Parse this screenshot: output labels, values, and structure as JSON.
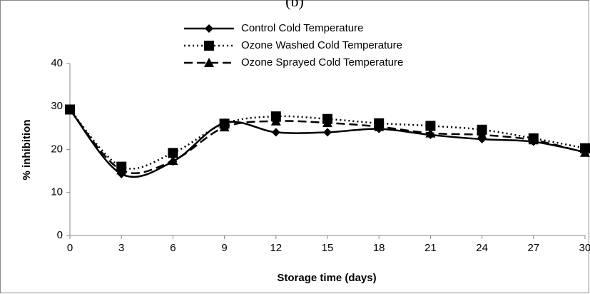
{
  "chart_data": {
    "type": "line",
    "title": "(b)",
    "x_label": "Storage time (days)",
    "y_label": "% inhibition",
    "x": [
      0,
      3,
      6,
      9,
      12,
      15,
      18,
      21,
      24,
      27,
      30
    ],
    "xlim": [
      0,
      30
    ],
    "xticks": [
      0,
      3,
      6,
      9,
      12,
      15,
      18,
      21,
      24,
      27,
      30
    ],
    "ylim": [
      0,
      40
    ],
    "yticks": [
      0,
      10,
      20,
      30,
      40
    ],
    "grid": false,
    "legend": "top",
    "series": [
      {
        "name": "Control Cold Temperature",
        "color": "#000000",
        "dash": "solid",
        "marker": "diamond",
        "values": [
          29.3,
          14.3,
          17.2,
          26.2,
          24.0,
          24.0,
          24.8,
          23.4,
          22.4,
          21.8,
          19.4
        ]
      },
      {
        "name": "Ozone Washed Cold Temperature",
        "color": "#000000",
        "dash": "dotted",
        "marker": "square",
        "values": [
          29.3,
          16.0,
          19.2,
          26.0,
          27.7,
          27.1,
          26.1,
          25.5,
          24.6,
          22.6,
          20.3
        ]
      },
      {
        "name": "Ozone Sprayed Cold Temperature",
        "color": "#000000",
        "dash": "dashed",
        "marker": "triangle",
        "values": [
          29.2,
          15.2,
          17.4,
          25.2,
          26.6,
          26.2,
          25.3,
          23.8,
          23.4,
          22.2,
          19.3
        ]
      }
    ]
  }
}
